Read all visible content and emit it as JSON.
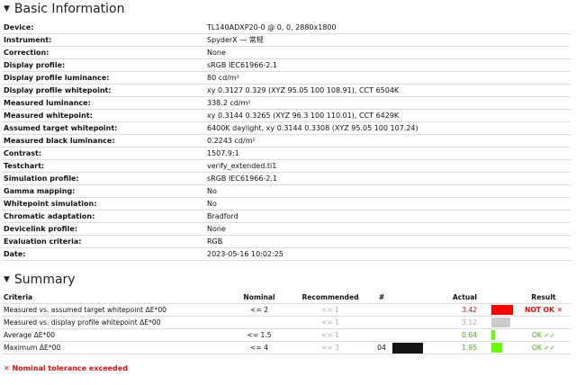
{
  "basic": {
    "title": "Basic Information",
    "rows": [
      {
        "label": "Device:",
        "value": "TL140ADXP20-0 @ 0, 0, 2880x1800"
      },
      {
        "label": "Instrument:",
        "value": "SpyderX — 常规"
      },
      {
        "label": "Correction:",
        "value": "None"
      },
      {
        "label": "Display profile:",
        "value": "sRGB IEC61966-2.1"
      },
      {
        "label": "Display profile luminance:",
        "value": "80 cd/m²"
      },
      {
        "label": "Display profile whitepoint:",
        "value": "xy 0.3127 0.329 (XYZ 95.05 100 108.91), CCT 6504K"
      },
      {
        "label": "Measured luminance:",
        "value": "338.2 cd/m²"
      },
      {
        "label": "Measured whitepoint:",
        "value": "xy 0.3144 0.3265 (XYZ 96.3 100 110.01), CCT 6429K"
      },
      {
        "label": "Assumed target whitepoint:",
        "value": "6400K daylight, xy 0.3144 0.3308 (XYZ 95.05 100 107.24)"
      },
      {
        "label": "Measured black luminance:",
        "value": "0.2243 cd/m²"
      },
      {
        "label": "Contrast:",
        "value": "1507.9:1"
      },
      {
        "label": "Testchart:",
        "value": "verify_extended.ti1"
      },
      {
        "label": "Simulation profile:",
        "value": "sRGB IEC61966-2.1"
      },
      {
        "label": "Gamma mapping:",
        "value": "No"
      },
      {
        "label": "Whitepoint simulation:",
        "value": "No"
      },
      {
        "label": "Chromatic adaptation:",
        "value": "Bradford"
      },
      {
        "label": "Devicelink profile:",
        "value": "None"
      },
      {
        "label": "Evaluation criteria:",
        "value": "RGB"
      },
      {
        "label": "Date:",
        "value": "2023-05-16 10:02:25"
      }
    ]
  },
  "summary": {
    "title": "Summary",
    "headers": {
      "criteria": "Criteria",
      "nominal": "Nominal",
      "recommended": "Recommended",
      "num": "#",
      "actual": "Actual",
      "result": "Result"
    },
    "rows": [
      {
        "criteria": "Measured vs. assumed target whitepoint ΔE*00",
        "nominal": "<= 2",
        "recommended": "<= 1",
        "num": "",
        "actual": "3.42",
        "actual_color": "#e01010",
        "bar_color": "#ff0000",
        "bar_fill": 1.0,
        "result": "NOT OK ✕",
        "result_color": "#e01010",
        "swatch": false
      },
      {
        "criteria": "Measured vs. display profile whitepoint ΔE*00",
        "nominal": "",
        "recommended": "<= 1",
        "num": "",
        "actual": "3.12",
        "actual_color": "#aaaaaa",
        "bar_color": "#cccccc",
        "bar_fill": 0.87,
        "result": "",
        "result_color": "#aaaaaa",
        "swatch": false
      },
      {
        "criteria": "Average ΔE*00",
        "nominal": "<= 1.5",
        "recommended": "<= 1",
        "num": "",
        "actual": "0.64",
        "actual_color": "#4caf20",
        "bar_color": "#66ff00",
        "bar_fill": 0.16,
        "result": "OK ✓✓",
        "result_color": "#4caf20",
        "swatch": false
      },
      {
        "criteria": "Maximum ΔE*00",
        "nominal": "<= 4",
        "recommended": "<= 3",
        "num": "04",
        "actual": "1.95",
        "actual_color": "#4caf20",
        "bar_color": "#66ff00",
        "bar_fill": 0.49,
        "result": "OK ✓✓",
        "result_color": "#4caf20",
        "swatch": true
      }
    ],
    "footnote": "✕ Nominal tolerance exceeded"
  }
}
